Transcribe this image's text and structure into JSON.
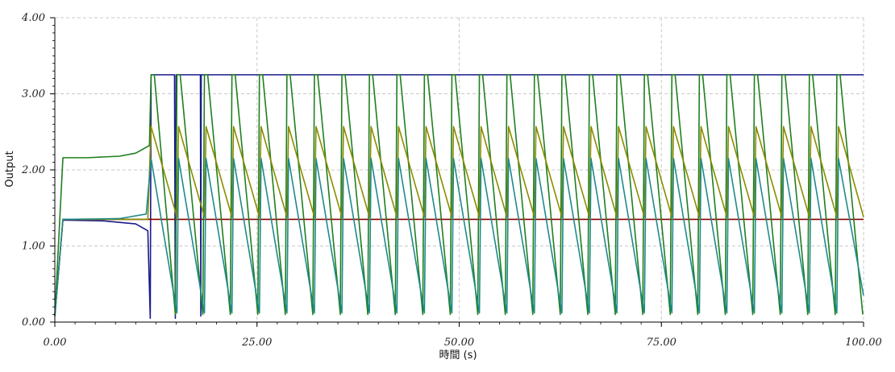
{
  "chart_data": {
    "type": "line",
    "xlabel": "時間 (s)",
    "ylabel": "Output",
    "xlim": [
      0,
      100
    ],
    "ylim": [
      0,
      4
    ],
    "x_ticks": [
      0,
      25,
      50,
      75,
      100
    ],
    "x_tick_labels": [
      "0.00",
      "25.00",
      "50.00",
      "75.00",
      "100.00"
    ],
    "y_ticks": [
      0,
      1,
      2,
      3,
      4
    ],
    "y_tick_labels": [
      "0.00",
      "1.00",
      "2.00",
      "3.00",
      "4.00"
    ],
    "grid": true,
    "legend": "none",
    "series": [
      {
        "color": "#1a1a8c",
        "points": [
          [
            0,
            0.08
          ],
          [
            1,
            1.34
          ],
          [
            6,
            1.33
          ],
          [
            10,
            1.29
          ],
          [
            11.5,
            1.2
          ],
          [
            11.8,
            0.05
          ],
          [
            11.9,
            3.25
          ],
          [
            14.8,
            3.25
          ],
          [
            14.9,
            0.05
          ],
          [
            15.0,
            3.25
          ],
          [
            18.0,
            3.25
          ],
          [
            18.05,
            0.08
          ],
          [
            18.1,
            3.25
          ],
          [
            100,
            3.25
          ]
        ]
      },
      {
        "color": "#8b0000",
        "points": [
          [
            0,
            0.08
          ],
          [
            1,
            1.35
          ],
          [
            100,
            1.35
          ]
        ]
      },
      {
        "color": "#1f7f1f",
        "points": [
          [
            0,
            0.08
          ],
          [
            1,
            2.16
          ],
          [
            4,
            2.16
          ],
          [
            8,
            2.18
          ],
          [
            10,
            2.22
          ],
          [
            11.7,
            2.32
          ],
          [
            11.9,
            3.25
          ],
          [
            12.3,
            3.25
          ],
          [
            14.9,
            0.1
          ],
          [
            15.1,
            3.25
          ],
          [
            15.5,
            3.25
          ],
          [
            18.3,
            0.1
          ],
          [
            18.5,
            3.25
          ],
          [
            18.9,
            3.25
          ],
          [
            21.7,
            0.1
          ],
          [
            21.9,
            3.25
          ],
          [
            22.3,
            3.25
          ],
          [
            25.1,
            0.1
          ],
          [
            25.3,
            3.25
          ],
          [
            25.7,
            3.25
          ],
          [
            28.5,
            0.1
          ],
          [
            28.7,
            3.25
          ],
          [
            29.1,
            3.25
          ],
          [
            31.9,
            0.1
          ],
          [
            32.1,
            3.25
          ],
          [
            32.5,
            3.25
          ],
          [
            35.3,
            0.1
          ],
          [
            35.5,
            3.25
          ],
          [
            35.9,
            3.25
          ],
          [
            38.7,
            0.1
          ],
          [
            38.9,
            3.25
          ],
          [
            39.3,
            3.25
          ],
          [
            42.1,
            0.1
          ],
          [
            42.3,
            3.25
          ],
          [
            42.7,
            3.25
          ],
          [
            45.5,
            0.1
          ],
          [
            45.7,
            3.25
          ],
          [
            46.1,
            3.25
          ],
          [
            48.9,
            0.1
          ],
          [
            49.1,
            3.25
          ],
          [
            49.5,
            3.25
          ],
          [
            52.3,
            0.1
          ],
          [
            52.5,
            3.25
          ],
          [
            52.9,
            3.25
          ],
          [
            55.7,
            0.1
          ],
          [
            55.9,
            3.25
          ],
          [
            56.3,
            3.25
          ],
          [
            59.1,
            0.1
          ],
          [
            59.3,
            3.25
          ],
          [
            59.7,
            3.25
          ],
          [
            62.5,
            0.1
          ],
          [
            62.7,
            3.25
          ],
          [
            63.1,
            3.25
          ],
          [
            65.9,
            0.1
          ],
          [
            66.1,
            3.25
          ],
          [
            66.5,
            3.25
          ],
          [
            69.3,
            0.1
          ],
          [
            69.5,
            3.25
          ],
          [
            69.9,
            3.25
          ],
          [
            72.7,
            0.1
          ],
          [
            72.9,
            3.25
          ],
          [
            73.3,
            3.25
          ],
          [
            76.1,
            0.1
          ],
          [
            76.3,
            3.25
          ],
          [
            76.7,
            3.25
          ],
          [
            79.5,
            0.1
          ],
          [
            79.7,
            3.25
          ],
          [
            80.1,
            3.25
          ],
          [
            82.9,
            0.1
          ],
          [
            83.1,
            3.25
          ],
          [
            83.5,
            3.25
          ],
          [
            86.3,
            0.1
          ],
          [
            86.5,
            3.25
          ],
          [
            86.9,
            3.25
          ],
          [
            89.7,
            0.1
          ],
          [
            89.9,
            3.25
          ],
          [
            90.3,
            3.25
          ],
          [
            93.1,
            0.1
          ],
          [
            93.3,
            3.25
          ],
          [
            93.7,
            3.25
          ],
          [
            96.5,
            0.1
          ],
          [
            96.7,
            3.25
          ],
          [
            97.1,
            3.25
          ],
          [
            99.9,
            0.1
          ]
        ]
      },
      {
        "color": "#8b8b00",
        "points": [
          [
            0,
            0.08
          ],
          [
            1,
            1.35
          ],
          [
            11.5,
            1.35
          ],
          [
            11.9,
            2.57
          ],
          [
            15.1,
            1.38
          ],
          [
            15.3,
            2.57
          ],
          [
            18.5,
            1.38
          ],
          [
            18.7,
            2.57
          ],
          [
            21.9,
            1.38
          ],
          [
            22.1,
            2.57
          ],
          [
            25.3,
            1.38
          ],
          [
            25.5,
            2.57
          ],
          [
            28.7,
            1.38
          ],
          [
            28.9,
            2.57
          ],
          [
            32.1,
            1.38
          ],
          [
            32.3,
            2.57
          ],
          [
            35.5,
            1.38
          ],
          [
            35.7,
            2.57
          ],
          [
            38.9,
            1.38
          ],
          [
            39.1,
            2.57
          ],
          [
            42.3,
            1.38
          ],
          [
            42.5,
            2.57
          ],
          [
            45.7,
            1.38
          ],
          [
            45.9,
            2.57
          ],
          [
            49.1,
            1.38
          ],
          [
            49.3,
            2.57
          ],
          [
            52.5,
            1.38
          ],
          [
            52.7,
            2.57
          ],
          [
            55.9,
            1.38
          ],
          [
            56.1,
            2.57
          ],
          [
            59.3,
            1.38
          ],
          [
            59.5,
            2.57
          ],
          [
            62.7,
            1.38
          ],
          [
            62.9,
            2.57
          ],
          [
            66.1,
            1.38
          ],
          [
            66.3,
            2.57
          ],
          [
            69.5,
            1.38
          ],
          [
            69.7,
            2.57
          ],
          [
            72.9,
            1.38
          ],
          [
            73.1,
            2.57
          ],
          [
            76.3,
            1.38
          ],
          [
            76.5,
            2.57
          ],
          [
            79.7,
            1.38
          ],
          [
            79.9,
            2.57
          ],
          [
            83.1,
            1.38
          ],
          [
            83.3,
            2.57
          ],
          [
            86.5,
            1.38
          ],
          [
            86.7,
            2.57
          ],
          [
            89.9,
            1.38
          ],
          [
            90.1,
            2.57
          ],
          [
            93.3,
            1.38
          ],
          [
            93.5,
            2.57
          ],
          [
            96.7,
            1.38
          ],
          [
            96.9,
            2.57
          ],
          [
            100,
            1.38
          ]
        ]
      },
      {
        "color": "#1f8a8a",
        "points": [
          [
            0,
            0.08
          ],
          [
            1,
            1.35
          ],
          [
            8,
            1.36
          ],
          [
            11.3,
            1.42
          ],
          [
            11.9,
            2.15
          ],
          [
            15.1,
            0.12
          ],
          [
            15.3,
            2.15
          ],
          [
            18.5,
            0.12
          ],
          [
            18.7,
            2.15
          ],
          [
            21.9,
            0.12
          ],
          [
            22.1,
            2.15
          ],
          [
            25.3,
            0.12
          ],
          [
            25.5,
            2.15
          ],
          [
            28.7,
            0.12
          ],
          [
            28.9,
            2.15
          ],
          [
            32.1,
            0.12
          ],
          [
            32.3,
            2.15
          ],
          [
            35.5,
            0.12
          ],
          [
            35.7,
            2.15
          ],
          [
            38.9,
            0.12
          ],
          [
            39.1,
            2.15
          ],
          [
            42.3,
            0.12
          ],
          [
            42.5,
            2.15
          ],
          [
            45.7,
            0.12
          ],
          [
            45.9,
            2.15
          ],
          [
            49.1,
            0.12
          ],
          [
            49.3,
            2.15
          ],
          [
            52.5,
            0.12
          ],
          [
            52.7,
            2.15
          ],
          [
            55.9,
            0.12
          ],
          [
            56.1,
            2.15
          ],
          [
            59.3,
            0.12
          ],
          [
            59.5,
            2.15
          ],
          [
            62.7,
            0.12
          ],
          [
            62.9,
            2.15
          ],
          [
            66.1,
            0.12
          ],
          [
            66.3,
            2.15
          ],
          [
            69.5,
            0.12
          ],
          [
            69.7,
            2.15
          ],
          [
            72.9,
            0.12
          ],
          [
            73.1,
            2.15
          ],
          [
            76.3,
            0.12
          ],
          [
            76.5,
            2.15
          ],
          [
            79.7,
            0.12
          ],
          [
            79.9,
            2.15
          ],
          [
            83.1,
            0.12
          ],
          [
            83.3,
            2.15
          ],
          [
            86.5,
            0.12
          ],
          [
            86.7,
            2.15
          ],
          [
            89.9,
            0.12
          ],
          [
            90.1,
            2.15
          ],
          [
            93.3,
            0.12
          ],
          [
            93.5,
            2.15
          ],
          [
            96.7,
            0.12
          ],
          [
            96.9,
            2.15
          ],
          [
            100,
            0.35
          ]
        ]
      }
    ]
  }
}
